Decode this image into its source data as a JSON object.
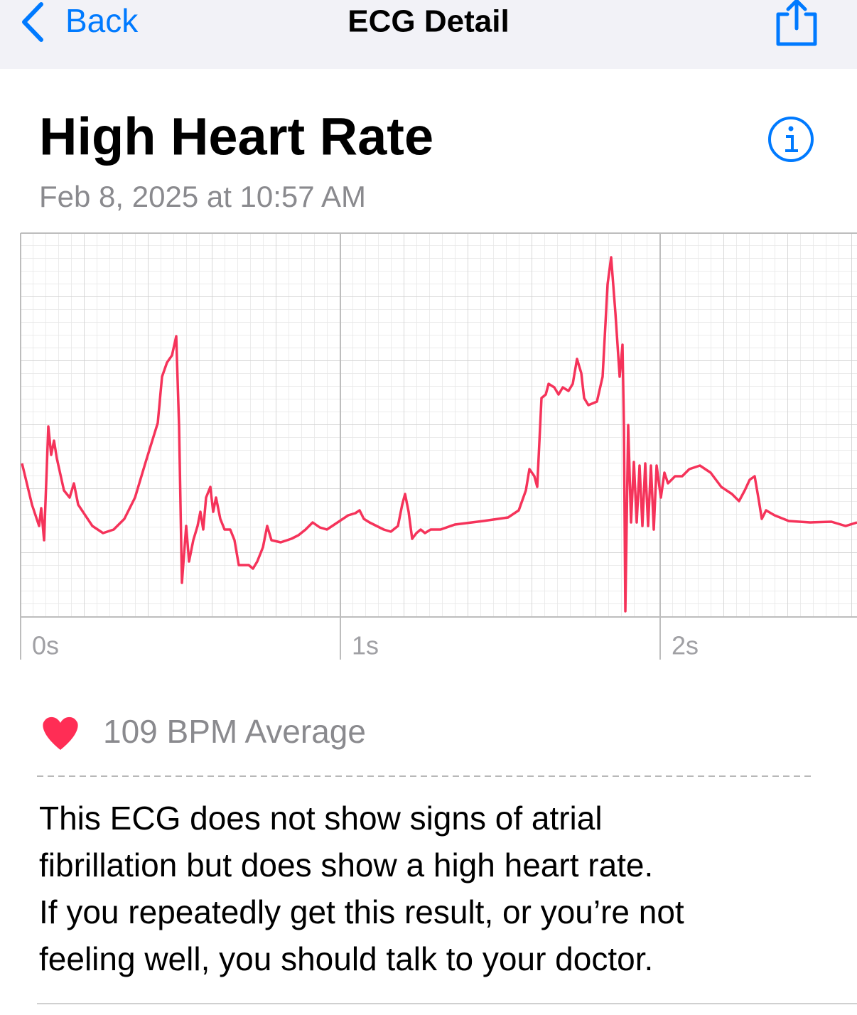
{
  "nav": {
    "back": "Back",
    "title": "ECG Detail"
  },
  "header": {
    "title": "High Heart Rate",
    "date": "Feb 8, 2025 at 10:57 AM"
  },
  "ecg": {
    "x_labels": [
      "0s",
      "1s",
      "2s"
    ]
  },
  "summary": {
    "heart_rate": "109 BPM Average"
  },
  "message": {
    "lines": [
      "This ECG does not show signs of atrial",
      "fibrillation but does show a high heart rate.",
      "If you repeatedly get this result, or you’re not",
      "feeling well, you should talk to your doctor."
    ]
  }
}
